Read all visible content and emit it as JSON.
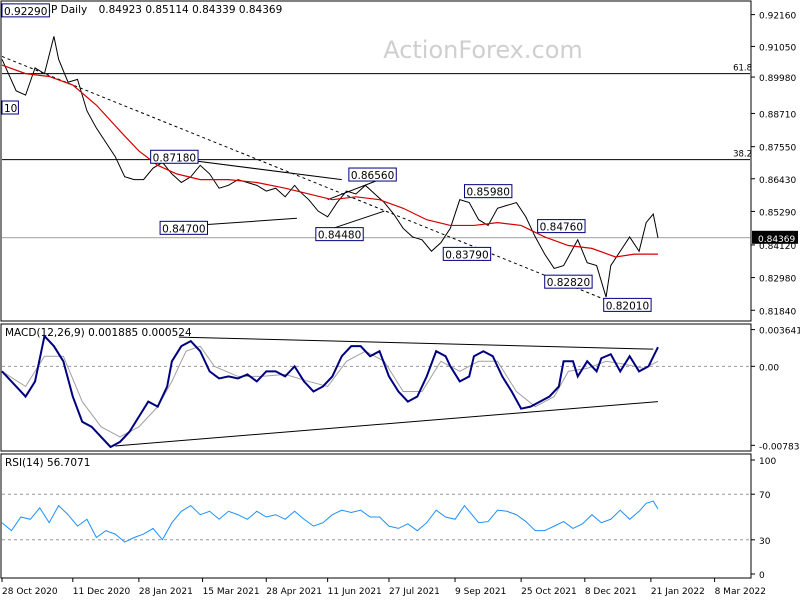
{
  "chart_data": {
    "type": "line",
    "symbol": "EURGBP",
    "timeframe": "Daily",
    "ohlc_readout": "0.84923 0.85114 0.84339 0.84369",
    "watermark": "ActionForex.com",
    "price_panel": {
      "ylim": [
        0.815,
        0.926
      ],
      "y_ticks": [
        "0.92160",
        "0.91050",
        "0.89980",
        "0.88710",
        "0.87550",
        "0.86430",
        "0.85290",
        "0.84120",
        "0.82980",
        "0.81840"
      ],
      "current_price": "0.84369",
      "fib_levels": [
        {
          "label": "61.8",
          "value": 0.901
        },
        {
          "label": "38.2",
          "value": 0.871
        }
      ],
      "price_labels": [
        {
          "text": "0.92290",
          "x": 0,
          "y": 0.9229
        },
        {
          "text": "0.87180",
          "x": 63,
          "y": 0.8718
        },
        {
          "text": "0.84700",
          "x": 67,
          "y": 0.847
        },
        {
          "text": "0.86560",
          "x": 147,
          "y": 0.8656
        },
        {
          "text": "0.84480",
          "x": 133,
          "y": 0.8448
        },
        {
          "text": "0.85980",
          "x": 196,
          "y": 0.8598
        },
        {
          "text": "0.83790",
          "x": 187,
          "y": 0.8379
        },
        {
          "text": "0.84760",
          "x": 227,
          "y": 0.8476
        },
        {
          "text": "0.82820",
          "x": 230,
          "y": 0.8282
        },
        {
          "text": "0.82010",
          "x": 255,
          "y": 0.8201
        },
        {
          "text": "10",
          "x": 0,
          "y": 0.889
        }
      ],
      "close": [
        [
          0,
          0.906
        ],
        [
          6,
          0.895
        ],
        [
          10,
          0.8935
        ],
        [
          14,
          0.903
        ],
        [
          18,
          0.901
        ],
        [
          22,
          0.914
        ],
        [
          24,
          0.906
        ],
        [
          28,
          0.898
        ],
        [
          32,
          0.899
        ],
        [
          36,
          0.888
        ],
        [
          40,
          0.882
        ],
        [
          44,
          0.877
        ],
        [
          48,
          0.872
        ],
        [
          52,
          0.865
        ],
        [
          56,
          0.864
        ],
        [
          60,
          0.864
        ],
        [
          64,
          0.868
        ],
        [
          68,
          0.87
        ],
        [
          72,
          0.866
        ],
        [
          76,
          0.863
        ],
        [
          80,
          0.865
        ],
        [
          84,
          0.869
        ],
        [
          88,
          0.866
        ],
        [
          92,
          0.861
        ],
        [
          96,
          0.862
        ],
        [
          100,
          0.864
        ],
        [
          104,
          0.863
        ],
        [
          108,
          0.862
        ],
        [
          112,
          0.86
        ],
        [
          116,
          0.861
        ],
        [
          120,
          0.858
        ],
        [
          124,
          0.862
        ],
        [
          126,
          0.86
        ],
        [
          130,
          0.857
        ],
        [
          134,
          0.853
        ],
        [
          138,
          0.851
        ],
        [
          142,
          0.856
        ],
        [
          146,
          0.86
        ],
        [
          150,
          0.859
        ],
        [
          154,
          0.862
        ],
        [
          158,
          0.859
        ],
        [
          162,
          0.856
        ],
        [
          166,
          0.852
        ],
        [
          170,
          0.847
        ],
        [
          174,
          0.844
        ],
        [
          178,
          0.843
        ],
        [
          182,
          0.839
        ],
        [
          186,
          0.842
        ],
        [
          190,
          0.847
        ],
        [
          194,
          0.857
        ],
        [
          198,
          0.856
        ],
        [
          202,
          0.85
        ],
        [
          206,
          0.848
        ],
        [
          210,
          0.854
        ],
        [
          214,
          0.855
        ],
        [
          218,
          0.856
        ],
        [
          222,
          0.851
        ],
        [
          226,
          0.844
        ],
        [
          230,
          0.838
        ],
        [
          234,
          0.833
        ],
        [
          238,
          0.834
        ],
        [
          240,
          0.837
        ],
        [
          244,
          0.843
        ],
        [
          248,
          0.835
        ],
        [
          252,
          0.834
        ],
        [
          256,
          0.823
        ],
        [
          258,
          0.834
        ],
        [
          262,
          0.839
        ],
        [
          266,
          0.844
        ],
        [
          270,
          0.839
        ],
        [
          273,
          0.849
        ],
        [
          276,
          0.852
        ],
        [
          278,
          0.8437
        ]
      ],
      "ma": [
        [
          0,
          0.904
        ],
        [
          10,
          0.901
        ],
        [
          20,
          0.9
        ],
        [
          30,
          0.897
        ],
        [
          40,
          0.89
        ],
        [
          50,
          0.881
        ],
        [
          58,
          0.874
        ],
        [
          66,
          0.869
        ],
        [
          74,
          0.866
        ],
        [
          84,
          0.864
        ],
        [
          96,
          0.864
        ],
        [
          108,
          0.863
        ],
        [
          120,
          0.861
        ],
        [
          130,
          0.859
        ],
        [
          140,
          0.857
        ],
        [
          150,
          0.858
        ],
        [
          160,
          0.857
        ],
        [
          170,
          0.854
        ],
        [
          180,
          0.85
        ],
        [
          190,
          0.848
        ],
        [
          200,
          0.848
        ],
        [
          210,
          0.849
        ],
        [
          220,
          0.848
        ],
        [
          230,
          0.844
        ],
        [
          240,
          0.841
        ],
        [
          250,
          0.84
        ],
        [
          260,
          0.837
        ],
        [
          268,
          0.838
        ],
        [
          278,
          0.838
        ]
      ],
      "trendlines": [
        [
          [
            0,
            0.907
          ],
          [
            259,
            0.821
          ]
        ],
        [
          [
            63,
            0.8725
          ],
          [
            144,
            0.864
          ]
        ],
        [
          [
            67,
            0.8472
          ],
          [
            125,
            0.8505
          ]
        ],
        [
          [
            133,
            0.845
          ],
          [
            162,
            0.853
          ]
        ],
        [
          [
            138,
            0.857
          ],
          [
            160,
            0.864
          ]
        ]
      ]
    },
    "macd_panel": {
      "label": "MACD(12,26,9) 0.001885 0.000524",
      "ylim": [
        -0.0083,
        0.004
      ],
      "y_ticks": [
        "0.003641",
        "0.00",
        "-0.007839"
      ],
      "macd": [
        [
          0,
          -0.0005
        ],
        [
          6,
          -0.002
        ],
        [
          10,
          -0.003
        ],
        [
          14,
          -0.0015
        ],
        [
          18,
          0.003
        ],
        [
          22,
          0.002
        ],
        [
          26,
          0.0005
        ],
        [
          30,
          -0.003
        ],
        [
          34,
          -0.0055
        ],
        [
          38,
          -0.006
        ],
        [
          42,
          -0.007
        ],
        [
          46,
          -0.008
        ],
        [
          50,
          -0.0075
        ],
        [
          54,
          -0.0065
        ],
        [
          58,
          -0.005
        ],
        [
          62,
          -0.0035
        ],
        [
          66,
          -0.004
        ],
        [
          70,
          -0.002
        ],
        [
          72,
          0.0005
        ],
        [
          76,
          0.002
        ],
        [
          80,
          0.0025
        ],
        [
          84,
          0.0015
        ],
        [
          88,
          -0.0005
        ],
        [
          92,
          -0.0012
        ],
        [
          96,
          -0.001
        ],
        [
          100,
          -0.0012
        ],
        [
          104,
          -0.0008
        ],
        [
          108,
          -0.0015
        ],
        [
          112,
          -0.0005
        ],
        [
          116,
          -0.0005
        ],
        [
          120,
          -0.001
        ],
        [
          124,
          0.0
        ],
        [
          128,
          -0.0015
        ],
        [
          132,
          -0.0025
        ],
        [
          136,
          -0.002
        ],
        [
          140,
          -0.001
        ],
        [
          144,
          0.001
        ],
        [
          148,
          0.002
        ],
        [
          152,
          0.002
        ],
        [
          156,
          0.001
        ],
        [
          160,
          0.0015
        ],
        [
          164,
          -0.001
        ],
        [
          168,
          -0.0025
        ],
        [
          172,
          -0.0035
        ],
        [
          176,
          -0.003
        ],
        [
          180,
          -0.001
        ],
        [
          184,
          0.0015
        ],
        [
          188,
          0.001
        ],
        [
          190,
          0.0
        ],
        [
          194,
          -0.0015
        ],
        [
          198,
          -0.001
        ],
        [
          200,
          0.001
        ],
        [
          204,
          0.0015
        ],
        [
          208,
          0.001
        ],
        [
          212,
          -0.001
        ],
        [
          216,
          -0.0025
        ],
        [
          220,
          -0.0042
        ],
        [
          224,
          -0.004
        ],
        [
          228,
          -0.0035
        ],
        [
          232,
          -0.003
        ],
        [
          236,
          -0.002
        ],
        [
          238,
          0.0005
        ],
        [
          242,
          0.0005
        ],
        [
          244,
          -0.001
        ],
        [
          248,
          0.0005
        ],
        [
          252,
          -0.0005
        ],
        [
          254,
          0.0008
        ],
        [
          258,
          0.0012
        ],
        [
          262,
          -0.0005
        ],
        [
          266,
          0.001
        ],
        [
          270,
          -0.0005
        ],
        [
          274,
          0.0
        ],
        [
          278,
          0.0019
        ]
      ],
      "signal": [
        [
          0,
          -0.0005
        ],
        [
          10,
          -0.002
        ],
        [
          18,
          0.001
        ],
        [
          26,
          0.001
        ],
        [
          34,
          -0.0035
        ],
        [
          42,
          -0.006
        ],
        [
          50,
          -0.007
        ],
        [
          58,
          -0.006
        ],
        [
          66,
          -0.004
        ],
        [
          72,
          -0.0015
        ],
        [
          78,
          0.0015
        ],
        [
          84,
          0.002
        ],
        [
          90,
          0.0
        ],
        [
          100,
          -0.001
        ],
        [
          110,
          -0.001
        ],
        [
          120,
          -0.0008
        ],
        [
          130,
          -0.0015
        ],
        [
          138,
          -0.002
        ],
        [
          146,
          0.0005
        ],
        [
          154,
          0.0015
        ],
        [
          162,
          0.0005
        ],
        [
          170,
          -0.0025
        ],
        [
          178,
          -0.0025
        ],
        [
          186,
          0.0005
        ],
        [
          194,
          -0.0005
        ],
        [
          202,
          0.0005
        ],
        [
          210,
          0.0005
        ],
        [
          218,
          -0.0025
        ],
        [
          226,
          -0.004
        ],
        [
          234,
          -0.003
        ],
        [
          240,
          -0.0005
        ],
        [
          248,
          -0.0002
        ],
        [
          256,
          0.0005
        ],
        [
          264,
          0.0002
        ],
        [
          272,
          -0.0002
        ],
        [
          278,
          0.0005
        ]
      ],
      "trendlines": [
        [
          [
            75,
            0.0029
          ],
          [
            276,
            0.0017
          ]
        ],
        [
          [
            48,
            -0.0079
          ],
          [
            278,
            -0.0035
          ]
        ]
      ]
    },
    "rsi_panel": {
      "label": "RSI(14) 56.7071",
      "ylim": [
        0,
        100
      ],
      "y_ticks": [
        100,
        70,
        30,
        0
      ],
      "value": 56.7071,
      "rsi": [
        [
          0,
          45
        ],
        [
          4,
          38
        ],
        [
          8,
          50
        ],
        [
          12,
          48
        ],
        [
          16,
          58
        ],
        [
          20,
          45
        ],
        [
          24,
          60
        ],
        [
          28,
          52
        ],
        [
          32,
          42
        ],
        [
          36,
          48
        ],
        [
          40,
          32
        ],
        [
          44,
          38
        ],
        [
          48,
          35
        ],
        [
          52,
          28
        ],
        [
          56,
          32
        ],
        [
          60,
          35
        ],
        [
          64,
          40
        ],
        [
          68,
          30
        ],
        [
          72,
          45
        ],
        [
          76,
          55
        ],
        [
          80,
          60
        ],
        [
          84,
          52
        ],
        [
          88,
          55
        ],
        [
          92,
          48
        ],
        [
          96,
          55
        ],
        [
          100,
          52
        ],
        [
          104,
          48
        ],
        [
          108,
          55
        ],
        [
          112,
          50
        ],
        [
          116,
          52
        ],
        [
          120,
          48
        ],
        [
          124,
          55
        ],
        [
          128,
          48
        ],
        [
          132,
          42
        ],
        [
          136,
          45
        ],
        [
          140,
          52
        ],
        [
          144,
          56
        ],
        [
          148,
          54
        ],
        [
          152,
          56
        ],
        [
          156,
          50
        ],
        [
          160,
          50
        ],
        [
          164,
          42
        ],
        [
          168,
          40
        ],
        [
          172,
          44
        ],
        [
          176,
          38
        ],
        [
          180,
          45
        ],
        [
          184,
          56
        ],
        [
          188,
          50
        ],
        [
          192,
          48
        ],
        [
          196,
          60
        ],
        [
          198,
          55
        ],
        [
          202,
          45
        ],
        [
          206,
          46
        ],
        [
          210,
          56
        ],
        [
          214,
          55
        ],
        [
          218,
          52
        ],
        [
          222,
          46
        ],
        [
          226,
          38
        ],
        [
          230,
          38
        ],
        [
          234,
          42
        ],
        [
          238,
          46
        ],
        [
          242,
          40
        ],
        [
          246,
          44
        ],
        [
          250,
          52
        ],
        [
          254,
          45
        ],
        [
          258,
          48
        ],
        [
          262,
          56
        ],
        [
          266,
          48
        ],
        [
          270,
          55
        ],
        [
          273,
          62
        ],
        [
          276,
          64
        ],
        [
          278,
          57
        ]
      ]
    },
    "x_ticks": [
      {
        "label": "28 Oct 2020",
        "x": 0
      },
      {
        "label": "11 Dec 2020",
        "x": 30
      },
      {
        "label": "28 Jan 2021",
        "x": 58
      },
      {
        "label": "15 Mar 2021",
        "x": 85
      },
      {
        "label": "28 Apr 2021",
        "x": 112
      },
      {
        "label": "11 Jun 2021",
        "x": 138
      },
      {
        "label": "27 Jul 2021",
        "x": 164
      },
      {
        "label": "9 Sep 2021",
        "x": 192
      },
      {
        "label": "25 Oct 2021",
        "x": 220
      },
      {
        "label": "8 Dec 2021",
        "x": 247
      },
      {
        "label": "21 Jan 2022",
        "x": 275
      },
      {
        "label": "8 Mar 2022",
        "x": 302
      }
    ],
    "x_range": [
      0,
      317
    ],
    "colors": {
      "price": "#000000",
      "ma": "#d40000",
      "macd": "#000080",
      "signal": "#a0a0a0",
      "rsi": "#1e90ff",
      "label_border": "#000080",
      "grid_dash": "#999999",
      "watermark": "#cfcfcf"
    }
  }
}
